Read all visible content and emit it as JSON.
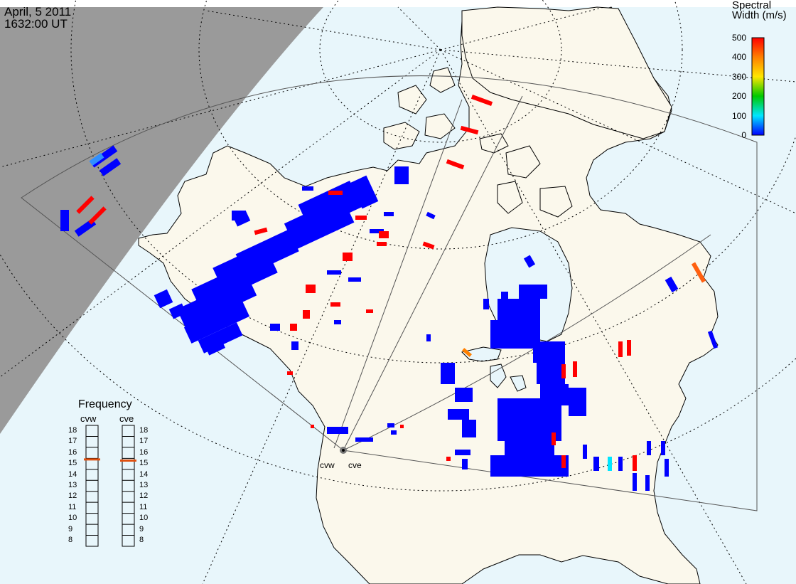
{
  "header": {
    "date": "April, 5 2011",
    "time": "1632:00 UT"
  },
  "colorbar": {
    "title_line1": "Spectral",
    "title_line2": "Width (m/s)",
    "ticks": [
      "500",
      "400",
      "300",
      "200",
      "100",
      "0"
    ],
    "range": [
      0,
      500
    ],
    "colors": [
      "#0000ff",
      "#00e6ff",
      "#00c800",
      "#ffe600",
      "#ff8000",
      "#ff0000"
    ]
  },
  "frequency": {
    "title": "Frequency",
    "radars": [
      {
        "code": "cvw",
        "selected_mhz": 15.4
      },
      {
        "code": "cve",
        "selected_mhz": 15.3
      }
    ],
    "ticks": [
      "18",
      "17",
      "16",
      "15",
      "14",
      "13",
      "12",
      "11",
      "10",
      "9",
      "8"
    ]
  },
  "sites": {
    "cvw_label": "cvw",
    "cve_label": "cve"
  },
  "colors": {
    "ocean": "#e8f6fb",
    "land": "#fbf8ec",
    "night": "#9a9a9a",
    "backscatter_low": "#0000ff",
    "backscatter_high": "#ff0000",
    "frequency_marker": "#e05010"
  }
}
